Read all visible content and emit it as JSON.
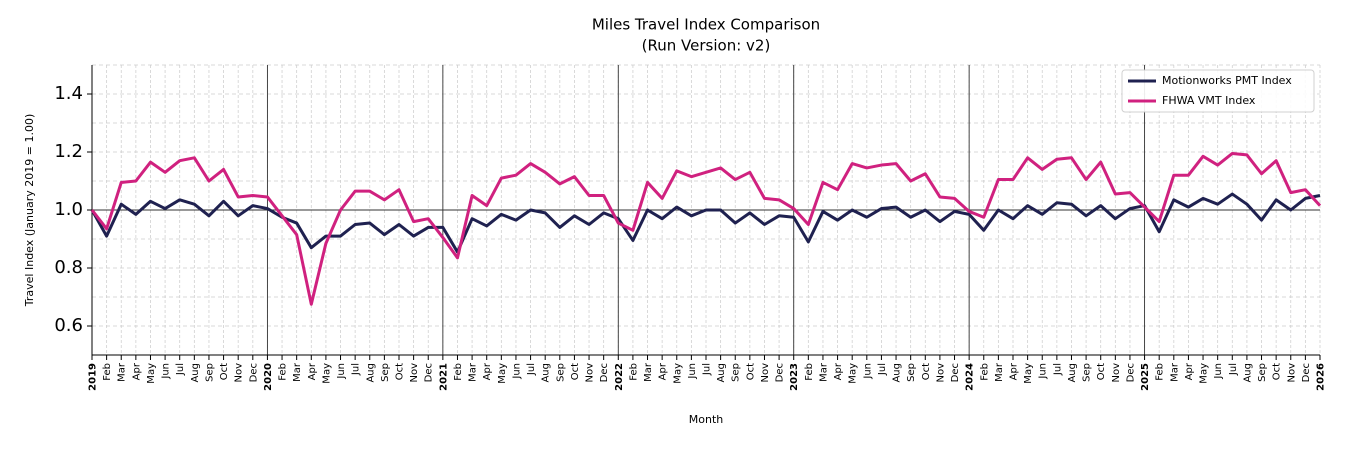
{
  "chart_data": {
    "type": "line",
    "title": "Miles Travel Index Comparison",
    "subtitle": "(Run Version: v2)",
    "x_label": "Month",
    "y_label": "Travel Index (January 2019 = 1.00)",
    "categories": [
      "2019",
      "Feb",
      "Mar",
      "Apr",
      "May",
      "Jun",
      "Jul",
      "Aug",
      "Sep",
      "Oct",
      "Nov",
      "Dec",
      "2020",
      "Feb",
      "Mar",
      "Apr",
      "May",
      "Jun",
      "Jul",
      "Aug",
      "Sep",
      "Oct",
      "Nov",
      "Dec",
      "2021",
      "Feb",
      "Mar",
      "Apr",
      "May",
      "Jun",
      "Jul",
      "Aug",
      "Sep",
      "Oct",
      "Nov",
      "Dec",
      "2022",
      "Feb",
      "Mar",
      "Apr",
      "May",
      "Jun",
      "Jul",
      "Aug",
      "Sep",
      "Oct",
      "Nov",
      "Dec",
      "2023",
      "Feb",
      "Mar",
      "Apr",
      "May",
      "Jun",
      "Jul",
      "Aug",
      "Sep",
      "Oct",
      "Nov",
      "Dec",
      "2024",
      "Feb",
      "Mar",
      "Apr",
      "May",
      "Jun",
      "Jul",
      "Aug",
      "Sep",
      "Oct",
      "Nov",
      "Dec",
      "2025",
      "Feb",
      "Mar",
      "Apr",
      "May",
      "Jun",
      "Jul",
      "Aug",
      "Sep",
      "Oct",
      "Nov",
      "Dec",
      "2026"
    ],
    "series": [
      {
        "name": "Motionworks PMT Index",
        "color": "#1f2150",
        "values": [
          1.0,
          0.91,
          1.02,
          0.985,
          1.03,
          1.005,
          1.035,
          1.02,
          0.98,
          1.03,
          0.98,
          1.015,
          1.005,
          0.975,
          0.955,
          0.87,
          0.91,
          0.91,
          0.95,
          0.955,
          0.915,
          0.95,
          0.91,
          0.94,
          0.94,
          0.855,
          0.97,
          0.945,
          0.985,
          0.965,
          1.0,
          0.99,
          0.94,
          0.98,
          0.95,
          0.99,
          0.97,
          0.895,
          1.0,
          0.97,
          1.01,
          0.98,
          1.0,
          1.0,
          0.955,
          0.99,
          0.95,
          0.98,
          0.975,
          0.89,
          0.995,
          0.965,
          1.0,
          0.975,
          1.005,
          1.01,
          0.975,
          1.0,
          0.96,
          0.995,
          0.985,
          0.93,
          1.0,
          0.97,
          1.015,
          0.985,
          1.025,
          1.02,
          0.98,
          1.015,
          0.97,
          1.005,
          1.015,
          0.925,
          1.035,
          1.01,
          1.04,
          1.02,
          1.055,
          1.02,
          0.965,
          1.035,
          1.0,
          1.04,
          1.05
        ]
      },
      {
        "name": "FHWA VMT Index",
        "color": "#d0217f",
        "values": [
          1.0,
          0.935,
          1.095,
          1.1,
          1.165,
          1.13,
          1.17,
          1.18,
          1.1,
          1.14,
          1.045,
          1.05,
          1.045,
          0.98,
          0.915,
          0.675,
          0.885,
          1.0,
          1.065,
          1.065,
          1.035,
          1.07,
          0.96,
          0.97,
          0.905,
          0.835,
          1.05,
          1.015,
          1.11,
          1.12,
          1.16,
          1.13,
          1.09,
          1.115,
          1.05,
          1.05,
          0.955,
          0.93,
          1.095,
          1.04,
          1.135,
          1.115,
          1.13,
          1.145,
          1.105,
          1.13,
          1.04,
          1.035,
          1.005,
          0.95,
          1.095,
          1.07,
          1.16,
          1.145,
          1.155,
          1.16,
          1.1,
          1.125,
          1.045,
          1.04,
          0.995,
          0.975,
          1.105,
          1.105,
          1.18,
          1.14,
          1.175,
          1.18,
          1.105,
          1.165,
          1.055,
          1.06,
          1.01,
          0.96,
          1.12,
          1.12,
          1.185,
          1.155,
          1.195,
          1.19,
          1.125,
          1.17,
          1.06,
          1.07,
          1.015
        ]
      }
    ],
    "ylim": [
      0.5,
      1.5
    ],
    "yticks": [
      0.6,
      0.8,
      {
        "value": 1,
        "label": "1.0"
      },
      1.2,
      1.4
    ],
    "y_minor_ticks": [
      0.7,
      0.9,
      1.1,
      1.3,
      1.5
    ],
    "reference_line": 1,
    "grid": true,
    "legend": "upper right"
  }
}
